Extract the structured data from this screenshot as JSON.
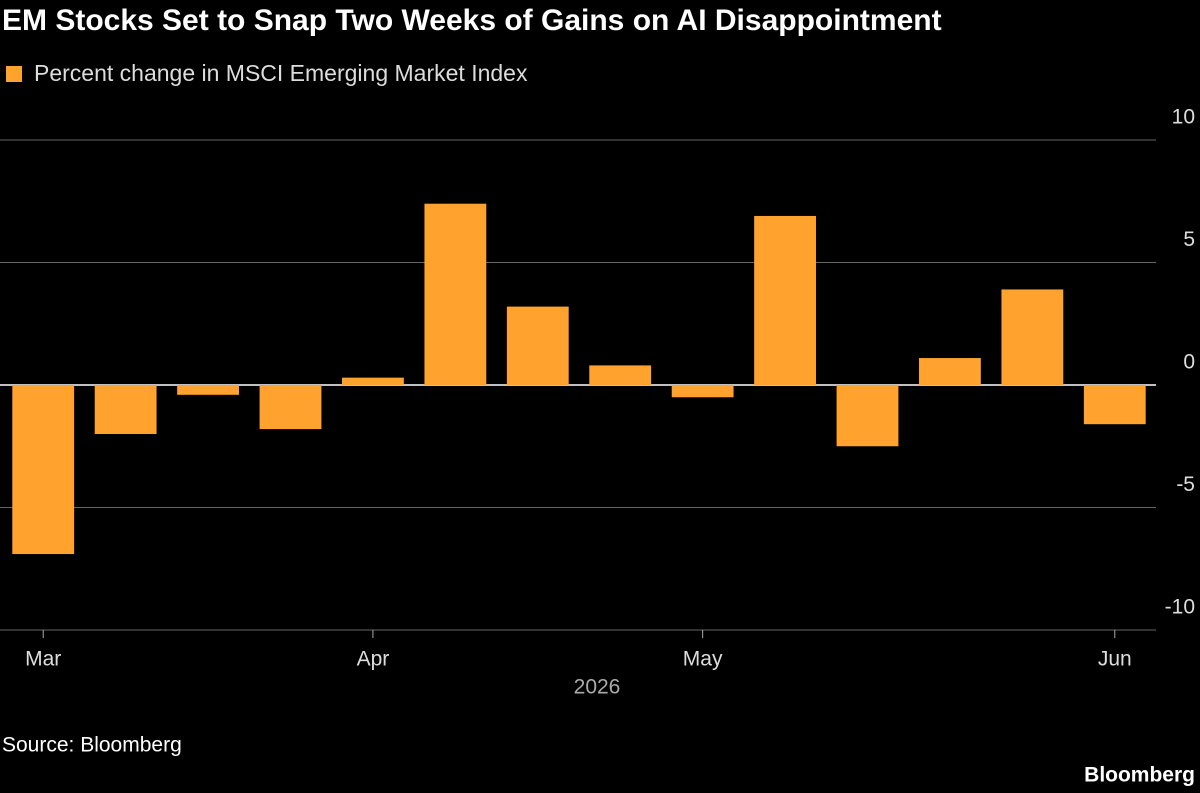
{
  "chart_data": {
    "type": "bar",
    "title": "EM Stocks Set to Snap Two Weeks of Gains on AI Disappointment",
    "series": [
      {
        "name": "Percent change in MSCI Emerging Market Index",
        "color": "#ffa32e",
        "values": [
          -6.9,
          -2.0,
          -0.4,
          -1.8,
          0.3,
          7.4,
          3.2,
          0.8,
          -0.5,
          6.9,
          -2.5,
          1.1,
          3.9,
          -1.6
        ]
      }
    ],
    "categories": [
      "Mar",
      null,
      null,
      null,
      "Apr",
      null,
      null,
      null,
      "May",
      null,
      null,
      null,
      null,
      "Jun"
    ],
    "xlabel": "2026",
    "ylim": [
      -10,
      10
    ],
    "yticks": [
      10,
      5,
      0,
      -5,
      -10
    ],
    "grid": true,
    "source": "Source: Bloomberg",
    "brand": "Bloomberg"
  }
}
